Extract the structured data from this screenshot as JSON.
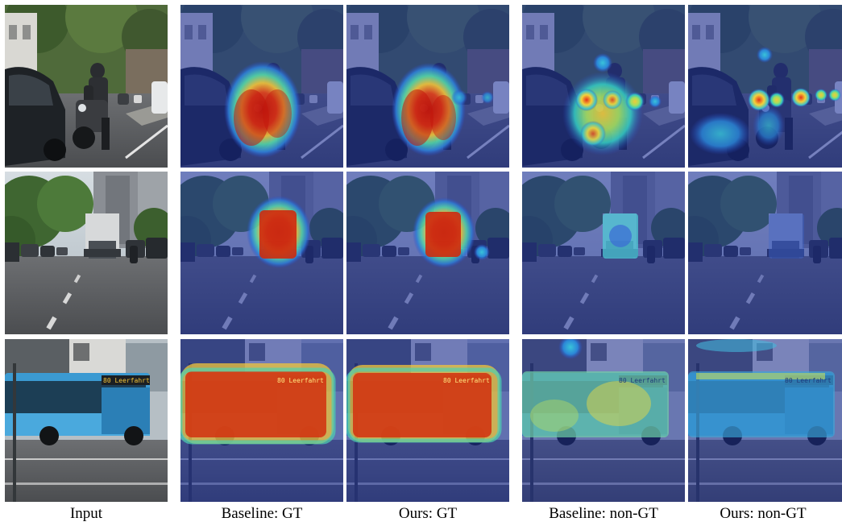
{
  "figure": {
    "columns": [
      {
        "id": "input",
        "caption": "Input"
      },
      {
        "id": "baseline-gt",
        "caption": "Baseline: GT"
      },
      {
        "id": "ours-gt",
        "caption": "Ours: GT"
      },
      {
        "id": "baseline-non-gt",
        "caption": "Baseline: non-GT"
      },
      {
        "id": "ours-non-gt",
        "caption": "Ours: non-GT"
      }
    ],
    "rows": [
      {
        "id": "motorcycle",
        "scene": "street with motorcyclist and parked cars"
      },
      {
        "id": "truck",
        "scene": "road with white truck ahead"
      },
      {
        "id": "bus",
        "scene": "blue city bus at intersection"
      }
    ],
    "bus_sign": "80 Leerfahrt",
    "colors": {
      "heat_hot": "#d81e05",
      "heat_warm": "#f7d13c",
      "heat_mid": "#34c7c0",
      "heat_cool": "#2b4bc8",
      "overlay_tint": "#1b2f9e"
    }
  }
}
